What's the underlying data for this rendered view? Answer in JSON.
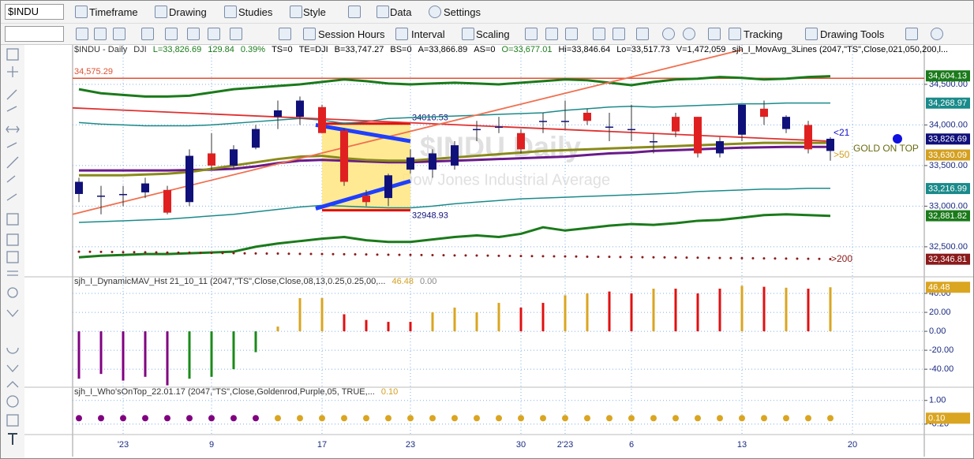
{
  "toolbar": {
    "symbol": "$INDU",
    "row1": [
      "Timeframe",
      "Drawing",
      "Studies",
      "Style",
      "Data",
      "Settings"
    ],
    "row2": [
      "Session Hours",
      "Interval",
      "Scaling",
      "Tracking",
      "Drawing Tools"
    ]
  },
  "annotations": [
    "<21",
    ">50",
    ">200",
    "GOLD ON TOP"
  ],
  "chart_data": [
    {
      "type": "candlestick",
      "title": "$INDU - Daily",
      "header": [
        {
          "text": "DJI",
          "color": "#333"
        },
        {
          "text": "L=33,826.69",
          "color": "#1a7a1a"
        },
        {
          "text": "129.84",
          "color": "#1a7a1a"
        },
        {
          "text": "0.39%",
          "color": "#1a7a1a"
        },
        {
          "text": "TS=0",
          "color": "#000"
        },
        {
          "text": "TE=DJI",
          "color": "#000"
        },
        {
          "text": "B=33,747.27",
          "color": "#000"
        },
        {
          "text": "BS=0",
          "color": "#000"
        },
        {
          "text": "A=33,866.89",
          "color": "#000"
        },
        {
          "text": "AS=0",
          "color": "#000"
        },
        {
          "text": "O=33,677.01",
          "color": "#1a7a1a"
        },
        {
          "text": "Hi=33,846.64",
          "color": "#000"
        },
        {
          "text": "Lo=33,517.73",
          "color": "#000"
        },
        {
          "text": "V=1,472,059",
          "color": "#000"
        },
        {
          "text": "sjh_I_MovAvg_3Lines (2047,\"TS\",Close,021,050,200,l...",
          "color": "#000"
        }
      ],
      "watermark": [
        "$INDU Daily",
        "Dow Jones Industrial Average"
      ],
      "categories": [
        null,
        null,
        "'23",
        null,
        null,
        null,
        "9",
        null,
        null,
        null,
        null,
        "17",
        null,
        null,
        null,
        "23",
        null,
        null,
        null,
        null,
        "30",
        null,
        "2'23",
        null,
        null,
        "6",
        null,
        null,
        null,
        null,
        "13",
        null,
        null,
        null,
        null,
        "20"
      ],
      "open": [
        33150,
        33130,
        33150,
        33170,
        33200,
        33050,
        33650,
        33500,
        33720,
        34100,
        34100,
        34220,
        33930,
        33130,
        33100,
        33450,
        33450,
        33500,
        33950,
        33980,
        33900,
        34050,
        34050,
        34150,
        33980,
        33950,
        33800,
        34100,
        34100,
        33650,
        33880,
        34200,
        33950,
        34000,
        33680,
        null
      ],
      "high": [
        33350,
        33250,
        33250,
        33350,
        33250,
        33700,
        33900,
        33750,
        34000,
        34300,
        34350,
        34250,
        33960,
        33200,
        33400,
        33700,
        33700,
        33800,
        34050,
        34100,
        33950,
        34150,
        34300,
        34200,
        34150,
        34250,
        33900,
        34150,
        34100,
        33850,
        34250,
        34300,
        34120,
        34050,
        33850,
        null
      ],
      "low": [
        33050,
        32900,
        33000,
        33100,
        32900,
        33000,
        33450,
        33450,
        33700,
        33950,
        34000,
        33900,
        33250,
        33000,
        33000,
        33400,
        33350,
        33450,
        33800,
        33900,
        33650,
        33900,
        33950,
        34000,
        33800,
        33800,
        33650,
        33850,
        33600,
        33600,
        33800,
        34000,
        33900,
        33650,
        33560,
        null
      ],
      "close": [
        33300,
        33130,
        33150,
        33280,
        32920,
        33620,
        33500,
        33700,
        33950,
        34180,
        34300,
        33900,
        33300,
        33050,
        33380,
        33600,
        33650,
        33750,
        33950,
        33980,
        33700,
        34050,
        34050,
        34050,
        33980,
        33950,
        33800,
        33920,
        33650,
        33800,
        34250,
        34100,
        34100,
        33700,
        33830,
        null
      ],
      "up_color": "#10107a",
      "down_color": "#e02020",
      "series": [
        {
          "color": "#1a7a1a",
          "values": [
            34440,
            34390,
            34370,
            34350,
            34350,
            34360,
            34400,
            34440,
            34460,
            34480,
            34500,
            34530,
            34560,
            34540,
            34510,
            34500,
            34510,
            34520,
            34510,
            34500,
            34520,
            34540,
            34560,
            34550,
            34520,
            34490,
            34530,
            34560,
            34570,
            34590,
            34580,
            34560,
            34570,
            34590,
            34600,
            null
          ]
        },
        {
          "color": "#1a8a8a",
          "values": [
            34030,
            34010,
            34000,
            33990,
            33990,
            33990,
            34000,
            34020,
            34040,
            34060,
            34080,
            34060,
            34020,
            34040,
            34080,
            34090,
            34100,
            34110,
            34120,
            34130,
            34140,
            34150,
            34180,
            34200,
            34220,
            34230,
            34220,
            34230,
            34240,
            34250,
            34260,
            34260,
            34270,
            34270,
            34270,
            null
          ]
        },
        {
          "color": "#1a8a8a",
          "values": [
            32800,
            32810,
            32820,
            32830,
            32840,
            32860,
            32880,
            32900,
            32930,
            32960,
            32990,
            33010,
            33000,
            32990,
            32980,
            32980,
            33000,
            33030,
            33050,
            33070,
            33090,
            33100,
            33110,
            33120,
            33130,
            33140,
            33150,
            33160,
            33180,
            33190,
            33200,
            33210,
            33210,
            33220,
            33220,
            null
          ]
        },
        {
          "color": "#1a7a1a",
          "values": [
            32370,
            32390,
            32400,
            32410,
            32410,
            32420,
            32430,
            32440,
            32500,
            32540,
            32570,
            32600,
            32620,
            32580,
            32560,
            32560,
            32590,
            32620,
            32640,
            32620,
            32660,
            32740,
            32700,
            32730,
            32760,
            32780,
            32770,
            32790,
            32820,
            32830,
            32860,
            32890,
            32900,
            32890,
            32880,
            null
          ]
        },
        {
          "color": "#6a1a8a",
          "values": [
            33440,
            33440,
            33440,
            33440,
            33440,
            33445,
            33450,
            33460,
            33490,
            33530,
            33560,
            33570,
            33560,
            33550,
            33540,
            33540,
            33550,
            33560,
            33570,
            33580,
            33590,
            33600,
            33610,
            33630,
            33650,
            33660,
            33680,
            33690,
            33700,
            33710,
            33720,
            33725,
            33730,
            33730,
            33730,
            null
          ]
        },
        {
          "color": "#8a8a1a",
          "values": [
            33380,
            33380,
            33380,
            33390,
            33400,
            33420,
            33460,
            33500,
            33540,
            33580,
            33610,
            33620,
            33590,
            33570,
            33560,
            33560,
            33580,
            33600,
            33620,
            33640,
            33660,
            33680,
            33690,
            33700,
            33710,
            33720,
            33730,
            33740,
            33750,
            33760,
            33770,
            33780,
            33780,
            33780,
            33780,
            null
          ]
        },
        {
          "color": "#8b1a1a",
          "style": "dotted",
          "values": [
            32440,
            32437,
            32434,
            32432,
            32429,
            32427,
            32424,
            32421,
            32418,
            32416,
            32413,
            32410,
            32408,
            32405,
            32402,
            32400,
            32397,
            32394,
            32392,
            32389,
            32386,
            32384,
            32381,
            32378,
            32376,
            32373,
            32370,
            32368,
            32365,
            32362,
            32360,
            32357,
            32354,
            32352,
            32349,
            null
          ]
        }
      ],
      "hline": {
        "value": 34575.29,
        "label": "34,575.29",
        "color": "#e05030"
      },
      "box": {
        "x": [
          11,
          15
        ],
        "y": [
          32948.93,
          34016.53
        ],
        "color": "#ffe680",
        "edge": "#e01010"
      },
      "trendlines": [
        {
          "color": "#e03030",
          "x": [
            0,
            34
          ],
          "y": [
            34210,
            33800
          ]
        },
        {
          "color": "#f07050",
          "x": [
            0,
            30
          ],
          "y": [
            32900,
            34925
          ]
        },
        {
          "color": "#1f3fff",
          "thick": true,
          "x": [
            11,
            15
          ],
          "y": [
            34000,
            33800
          ]
        },
        {
          "color": "#1f3fff",
          "thick": true,
          "x": [
            11,
            15
          ],
          "y": [
            32970,
            33310
          ]
        }
      ],
      "ylim": [
        32130,
        34985
      ],
      "yticks": [
        {
          "value": 34500,
          "label": "34,500.00"
        },
        {
          "value": 34000,
          "label": "34,000.00"
        },
        {
          "value": 33500,
          "label": "33,500.00"
        },
        {
          "value": 33000,
          "label": "33,000.00"
        },
        {
          "value": 32500,
          "label": "32,500.00"
        }
      ],
      "last_labels": [
        {
          "value": 34604.13,
          "label": "34,604.13",
          "color": "#1a7a1a"
        },
        {
          "value": 34268.97,
          "label": "34,268.97",
          "color": "#1a8a8a"
        },
        {
          "value": 33826.69,
          "label": "33,826.69",
          "color": "#10107a"
        },
        {
          "value": 33630.09,
          "label": "33,630.09",
          "color": "#d4a020"
        },
        {
          "value": 33216.99,
          "label": "33,216.99",
          "color": "#1a8a8a"
        },
        {
          "value": 32881.82,
          "label": "32,881.82",
          "color": "#1a7a1a"
        },
        {
          "value": 32346.81,
          "label": "32,346.81",
          "color": "#8b1a1a"
        }
      ]
    },
    {
      "type": "bar",
      "title": "sjh_I_DynamicMAV_Hst 21_10_11 (2047,\"TS\",Close,Close,08,13,0.25,0.25,00,...",
      "readouts": [
        {
          "text": "46.48",
          "color": "#d4a020"
        },
        {
          "text": "0.00",
          "color": "#888"
        }
      ],
      "values": [
        -50,
        -45,
        -52,
        -48,
        -57,
        -50,
        -48,
        -40,
        -22,
        5,
        35,
        35,
        18,
        12,
        10,
        10,
        20,
        25,
        20,
        30,
        25,
        30,
        38,
        40,
        42,
        40,
        45,
        45,
        40,
        45,
        48,
        47,
        46,
        45,
        46.48
      ],
      "colors": [
        "#800080",
        "#800080",
        "#800080",
        "#800080",
        "#800080",
        "#1a8a1a",
        "#1a8a1a",
        "#1a8a1a",
        "#1a8a1a",
        "#daa520",
        "#daa520",
        "#daa520",
        "#e01010",
        "#e01010",
        "#e01010",
        "#e01010",
        "#daa520",
        "#daa520",
        "#daa520",
        "#daa520",
        "#e01010",
        "#e01010",
        "#daa520",
        "#daa520",
        "#e01010",
        "#e01010",
        "#daa520",
        "#e01010",
        "#e01010",
        "#e01010",
        "#daa520",
        "#e01010",
        "#daa520",
        "#e01010",
        "#daa520"
      ],
      "ylim": [
        -59,
        57.5
      ],
      "yticks": [
        {
          "value": 40,
          "label": "40.00"
        },
        {
          "value": 20,
          "label": "20.00"
        },
        {
          "value": 0,
          "label": "0.00"
        },
        {
          "value": -20,
          "label": "-20.00"
        },
        {
          "value": -40,
          "label": "-40.00"
        }
      ],
      "last_labels": [
        {
          "value": 46.48,
          "label": "46.48",
          "color": "#daa520"
        }
      ]
    },
    {
      "type": "scatter",
      "title": "sjh_I_Who'sOnTop_22.01.17 (2047,\"TS\",Close,Goldenrod,Purple,05, TRUE,...",
      "readouts": [
        {
          "text": "0.10",
          "color": "#d4a020"
        }
      ],
      "values": [
        0.1,
        0.1,
        0.1,
        0.1,
        0.1,
        0.1,
        0.1,
        0.1,
        0.1,
        0.1,
        0.1,
        0.1,
        0.1,
        0.1,
        0.1,
        0.1,
        0.1,
        0.1,
        0.1,
        0.1,
        0.1,
        0.1,
        0.1,
        0.1,
        0.1,
        0.1,
        0.1,
        0.1,
        0.1,
        0.1,
        0.1,
        0.1,
        0.1,
        0.1,
        0.1
      ],
      "colors": [
        "#800080",
        "#800080",
        "#800080",
        "#800080",
        "#800080",
        "#800080",
        "#800080",
        "#800080",
        "#800080",
        "#daa520",
        "#daa520",
        "#daa520",
        "#daa520",
        "#daa520",
        "#daa520",
        "#daa520",
        "#daa520",
        "#daa520",
        "#daa520",
        "#daa520",
        "#daa520",
        "#daa520",
        "#daa520",
        "#daa520",
        "#daa520",
        "#daa520",
        "#daa520",
        "#daa520",
        "#daa520",
        "#daa520",
        "#daa520",
        "#daa520",
        "#daa520",
        "#daa520",
        "#daa520"
      ],
      "ylim": [
        -0.73,
        1.67
      ],
      "yticks": [
        {
          "value": 1,
          "label": "1.00"
        },
        {
          "value": -0.2,
          "label": "-0.20"
        }
      ],
      "last_labels": [
        {
          "value": 0.1,
          "label": "0.10",
          "color": "#daa520"
        }
      ]
    }
  ]
}
